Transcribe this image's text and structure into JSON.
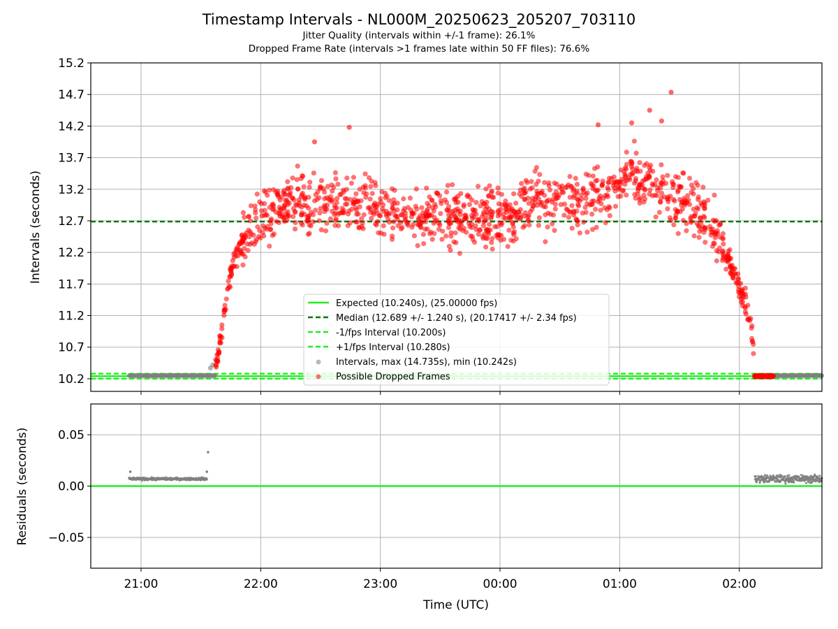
{
  "chart_data": [
    {
      "type": "scatter",
      "title": "Timestamp Intervals - NL000M_20250623_205207_703110",
      "subtitle_lines": [
        "Jitter Quality (intervals within +/-1 frame): 26.1%",
        "Dropped Frame Rate (intervals >1 frames late within 50 FF files): 76.6%"
      ],
      "ylabel": "Intervals (seconds)",
      "xlabel": "",
      "xlim_hours": [
        20.58,
        26.69
      ],
      "ylim": [
        10.0,
        15.2
      ],
      "yticks": [
        10.2,
        10.7,
        11.2,
        11.7,
        12.2,
        12.7,
        13.2,
        13.7,
        14.2,
        14.7,
        15.2
      ],
      "ytick_labels": [
        "10.2",
        "10.7",
        "11.2",
        "11.7",
        "12.2",
        "12.7",
        "13.2",
        "13.7",
        "14.2",
        "14.7",
        "15.2"
      ],
      "xticks_hours": [
        21,
        22,
        23,
        24,
        25,
        26
      ],
      "grid": true,
      "legend_position": "lower-center",
      "reference_lines": [
        {
          "name": "Expected (10.240s), (25.00000 fps)",
          "y": 10.24,
          "color": "#22ee22",
          "style": "solid"
        },
        {
          "name": "Median (12.689 +/- 1.240 s), (20.17417 +/- 2.34 fps)",
          "y": 12.689,
          "color": "#007700",
          "style": "dashed"
        },
        {
          "name": "-1/fps Interval (10.200s)",
          "y": 10.2,
          "color": "#22ee22",
          "style": "dashed"
        },
        {
          "name": "+1/fps Interval (10.280s)",
          "y": 10.28,
          "color": "#22ee22",
          "style": "dashed"
        }
      ],
      "series": [
        {
          "name": "Intervals, max (14.735s), min (10.242s)",
          "color": "#808080",
          "kind": "scatter"
        },
        {
          "name": "Possible Dropped Frames",
          "color": "#ff0000",
          "kind": "scatter"
        }
      ],
      "max_interval": 14.735,
      "min_interval": 10.242,
      "normal_segments_hours": [
        [
          20.9,
          21.62
        ],
        [
          26.13,
          26.69
        ]
      ],
      "dropped_envelope": [
        {
          "t": 21.62,
          "y": 10.35
        },
        {
          "t": 21.66,
          "y": 10.8
        },
        {
          "t": 21.7,
          "y": 11.3
        },
        {
          "t": 21.75,
          "y": 11.9
        },
        {
          "t": 21.8,
          "y": 12.2
        },
        {
          "t": 21.9,
          "y": 12.5
        },
        {
          "t": 22.0,
          "y": 12.75
        },
        {
          "t": 22.2,
          "y": 12.95
        },
        {
          "t": 22.5,
          "y": 13.0
        },
        {
          "t": 22.8,
          "y": 12.95
        },
        {
          "t": 23.0,
          "y": 12.85
        },
        {
          "t": 23.3,
          "y": 12.8
        },
        {
          "t": 23.6,
          "y": 12.75
        },
        {
          "t": 23.9,
          "y": 12.7
        },
        {
          "t": 24.1,
          "y": 12.75
        },
        {
          "t": 24.3,
          "y": 13.05
        },
        {
          "t": 24.6,
          "y": 13.0
        },
        {
          "t": 24.9,
          "y": 13.1
        },
        {
          "t": 25.1,
          "y": 13.5
        },
        {
          "t": 25.2,
          "y": 13.35
        },
        {
          "t": 25.4,
          "y": 13.15
        },
        {
          "t": 25.6,
          "y": 12.9
        },
        {
          "t": 25.75,
          "y": 12.7
        },
        {
          "t": 25.85,
          "y": 12.4
        },
        {
          "t": 25.95,
          "y": 11.9
        },
        {
          "t": 26.05,
          "y": 11.4
        },
        {
          "t": 26.1,
          "y": 11.0
        },
        {
          "t": 26.12,
          "y": 10.6
        }
      ],
      "dropped_band_hours": [
        26.13,
        26.28
      ],
      "dropped_band_y": 10.24
    },
    {
      "type": "scatter",
      "title": "",
      "xlabel": "Time (UTC)",
      "ylabel": "Residuals (seconds)",
      "ylim": [
        -0.08,
        0.08
      ],
      "yticks": [
        -0.05,
        0.0,
        0.05
      ],
      "ytick_labels": [
        "−0.05",
        "0.00",
        "0.05"
      ],
      "xticks_hours": [
        21,
        22,
        23,
        24,
        25,
        26
      ],
      "xtick_labels": [
        "21:00",
        "22:00",
        "23:00",
        "00:00",
        "01:00",
        "02:00"
      ],
      "grid": true,
      "zero_line_color": "#22ee22",
      "residual_level": 0.007,
      "residual_outliers": [
        {
          "t": 20.91,
          "y": 0.014
        },
        {
          "t": 21.55,
          "y": 0.014
        },
        {
          "t": 21.56,
          "y": 0.033
        }
      ],
      "residual_segments_hours": [
        [
          20.9,
          21.55
        ],
        [
          26.13,
          26.69
        ]
      ]
    }
  ]
}
